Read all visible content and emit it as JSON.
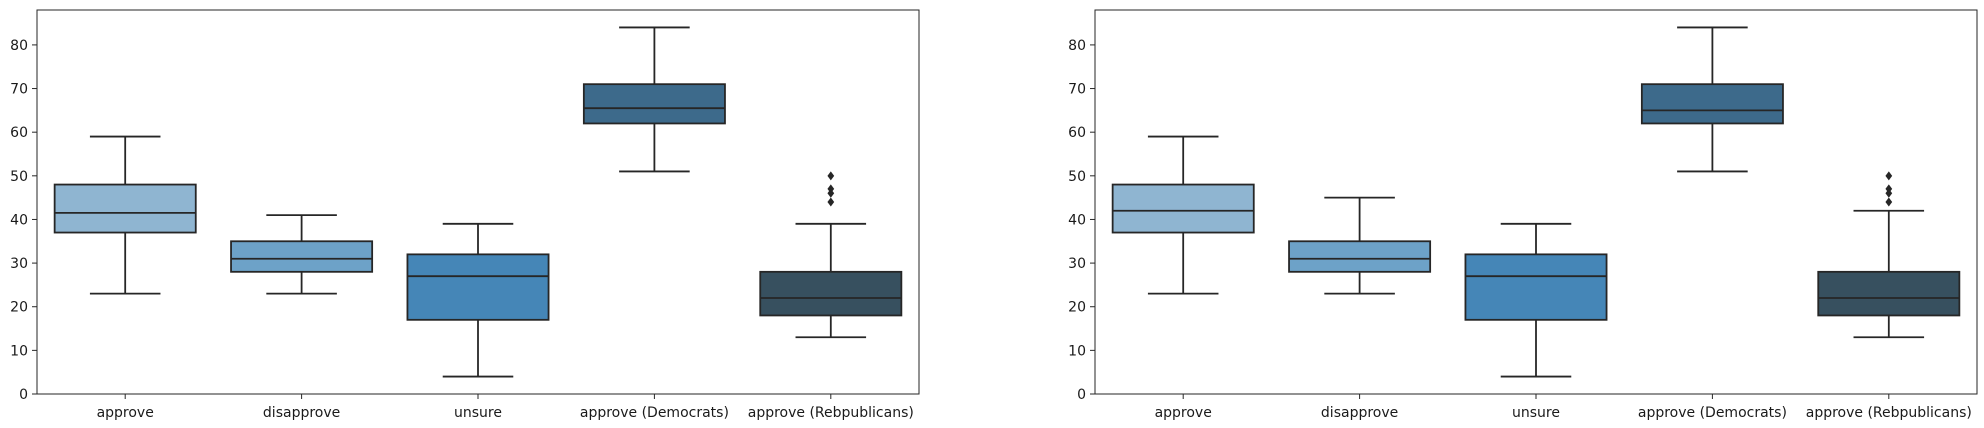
{
  "chart_data": [
    {
      "type": "box",
      "title": "",
      "xlabel": "",
      "ylabel": "",
      "ylim": [
        0,
        88
      ],
      "yticks": [
        0,
        10,
        20,
        30,
        40,
        50,
        60,
        70,
        80
      ],
      "grid": false,
      "categories": [
        "approve",
        "disapprove",
        "unsure",
        "approve (Democrats)",
        "approve (Rebpublicans)"
      ],
      "colors": [
        "#8fb5d1",
        "#6da2c8",
        "#4586b7",
        "#3d6a8b",
        "#37505f"
      ],
      "boxes": [
        {
          "whisker_low": 23,
          "q1": 37,
          "median": 41.5,
          "q3": 48,
          "whisker_high": 59,
          "outliers": []
        },
        {
          "whisker_low": 23,
          "q1": 28,
          "median": 31,
          "q3": 35,
          "whisker_high": 41,
          "outliers": []
        },
        {
          "whisker_low": 4,
          "q1": 17,
          "median": 27,
          "q3": 32,
          "whisker_high": 39,
          "outliers": []
        },
        {
          "whisker_low": 51,
          "q1": 62,
          "median": 65.5,
          "q3": 71,
          "whisker_high": 84,
          "outliers": []
        },
        {
          "whisker_low": 13,
          "q1": 18,
          "median": 22,
          "q3": 28,
          "whisker_high": 39,
          "outliers": [
            44,
            46,
            47,
            50
          ]
        }
      ]
    },
    {
      "type": "box",
      "title": "",
      "xlabel": "",
      "ylabel": "",
      "ylim": [
        0,
        88
      ],
      "yticks": [
        0,
        10,
        20,
        30,
        40,
        50,
        60,
        70,
        80
      ],
      "grid": false,
      "categories": [
        "approve",
        "disapprove",
        "unsure",
        "approve (Democrats)",
        "approve (Rebpublicans)"
      ],
      "colors": [
        "#8fb5d1",
        "#6da2c8",
        "#4586b7",
        "#3d6a8b",
        "#37505f"
      ],
      "boxes": [
        {
          "whisker_low": 23,
          "q1": 37,
          "median": 42,
          "q3": 48,
          "whisker_high": 59,
          "outliers": []
        },
        {
          "whisker_low": 23,
          "q1": 28,
          "median": 31,
          "q3": 35,
          "whisker_high": 45,
          "outliers": []
        },
        {
          "whisker_low": 4,
          "q1": 17,
          "median": 27,
          "q3": 32,
          "whisker_high": 39,
          "outliers": []
        },
        {
          "whisker_low": 51,
          "q1": 62,
          "median": 65,
          "q3": 71,
          "whisker_high": 84,
          "outliers": []
        },
        {
          "whisker_low": 13,
          "q1": 18,
          "median": 22,
          "q3": 28,
          "whisker_high": 42,
          "outliers": [
            44,
            46,
            47,
            50
          ]
        }
      ]
    }
  ]
}
